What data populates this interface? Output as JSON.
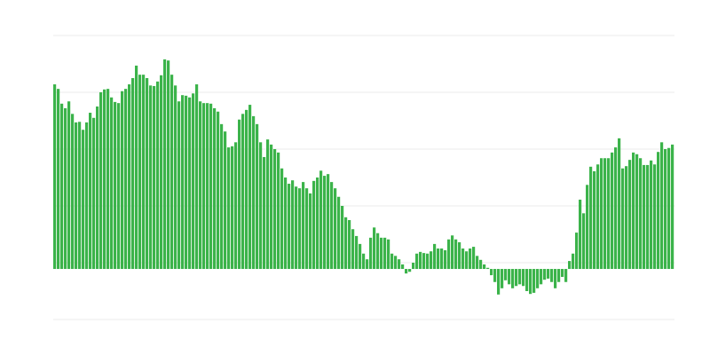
{
  "chart_data": {
    "type": "bar",
    "title": "",
    "xlabel": "",
    "ylabel": "",
    "ylim": [
      -0.89,
      4.11
    ],
    "gridlines": [
      4.11,
      3.11,
      2.11,
      1.11,
      0.11,
      -0.89
    ],
    "grid": true,
    "bar_color": "#3bb34a",
    "grid_color": "#ebebeb",
    "values": [
      3.25,
      3.17,
      2.91,
      2.83,
      2.95,
      2.73,
      2.58,
      2.59,
      2.45,
      2.58,
      2.75,
      2.66,
      2.86,
      3.11,
      3.16,
      3.17,
      3.02,
      2.94,
      2.92,
      3.13,
      3.17,
      3.25,
      3.36,
      3.58,
      3.42,
      3.42,
      3.36,
      3.23,
      3.22,
      3.3,
      3.41,
      3.69,
      3.67,
      3.42,
      3.23,
      2.95,
      3.06,
      3.05,
      3.02,
      3.09,
      3.25,
      2.95,
      2.92,
      2.92,
      2.91,
      2.83,
      2.77,
      2.55,
      2.42,
      2.14,
      2.16,
      2.23,
      2.63,
      2.73,
      2.8,
      2.89,
      2.69,
      2.55,
      2.23,
      1.97,
      2.28,
      2.19,
      2.11,
      2.05,
      1.77,
      1.61,
      1.5,
      1.56,
      1.45,
      1.42,
      1.53,
      1.42,
      1.33,
      1.55,
      1.61,
      1.73,
      1.64,
      1.67,
      1.53,
      1.42,
      1.27,
      1.11,
      0.91,
      0.86,
      0.7,
      0.58,
      0.44,
      0.27,
      0.17,
      0.55,
      0.73,
      0.63,
      0.55,
      0.55,
      0.52,
      0.27,
      0.23,
      0.17,
      0.08,
      -0.08,
      -0.05,
      0.11,
      0.27,
      0.3,
      0.28,
      0.27,
      0.31,
      0.44,
      0.36,
      0.36,
      0.33,
      0.52,
      0.59,
      0.52,
      0.47,
      0.36,
      0.31,
      0.36,
      0.39,
      0.23,
      0.16,
      0.08,
      0.02,
      -0.11,
      -0.23,
      -0.45,
      -0.34,
      -0.2,
      -0.27,
      -0.34,
      -0.3,
      -0.27,
      -0.3,
      -0.39,
      -0.44,
      -0.42,
      -0.34,
      -0.27,
      -0.19,
      -0.17,
      -0.23,
      -0.34,
      -0.23,
      -0.14,
      -0.23,
      0.14,
      0.27,
      0.64,
      1.22,
      0.98,
      1.48,
      1.8,
      1.72,
      1.84,
      1.95,
      1.95,
      1.95,
      2.05,
      2.14,
      2.3,
      1.77,
      1.81,
      1.92,
      2.05,
      2.02,
      1.95,
      1.83,
      1.83,
      1.91,
      1.84,
      2.06,
      2.23,
      2.11,
      2.13,
      2.19
    ]
  }
}
